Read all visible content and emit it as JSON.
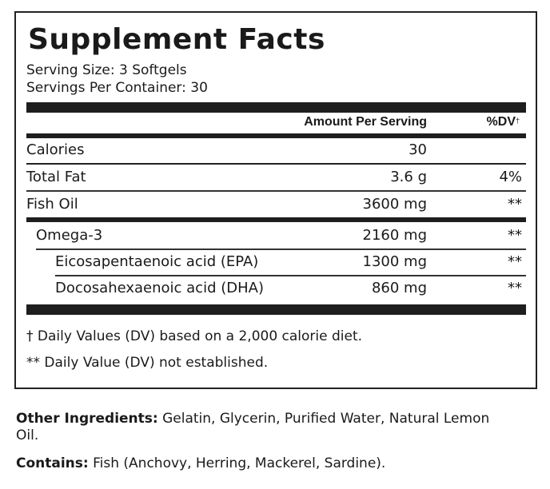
{
  "title": "Supplement Facts",
  "serving_size": "Serving Size: 3 Softgels",
  "servings_per_container": "Servings Per Container: 30",
  "header": {
    "amount": "Amount Per Serving",
    "dv": "%DV",
    "dv_mark": "†"
  },
  "rows": [
    {
      "label": "Calories",
      "amount": "30",
      "dv": ""
    },
    {
      "label": "Total Fat",
      "amount": "3.6 g",
      "dv": "4%"
    },
    {
      "label": "Fish Oil",
      "amount": "3600 mg",
      "dv": "**"
    },
    {
      "label": "Omega-3",
      "amount": "2160 mg",
      "dv": "**"
    },
    {
      "label": "Eicosapentaenoic acid (EPA)",
      "amount": "1300 mg",
      "dv": "**"
    },
    {
      "label": "Docosahexaenoic acid (DHA)",
      "amount": "860 mg",
      "dv": "**"
    }
  ],
  "footnotes": [
    "† Daily Values (DV) based on a 2,000 calorie diet.",
    "** Daily Value (DV) not established."
  ],
  "other_ingredients": {
    "label": "Other Ingredients:",
    "text": " Gelatin, Glycerin, Purified Water, Natural Lemon Oil."
  },
  "contains": {
    "label": "Contains:",
    "text": " Fish (Anchovy, Herring, Mackerel, Sardine)."
  }
}
